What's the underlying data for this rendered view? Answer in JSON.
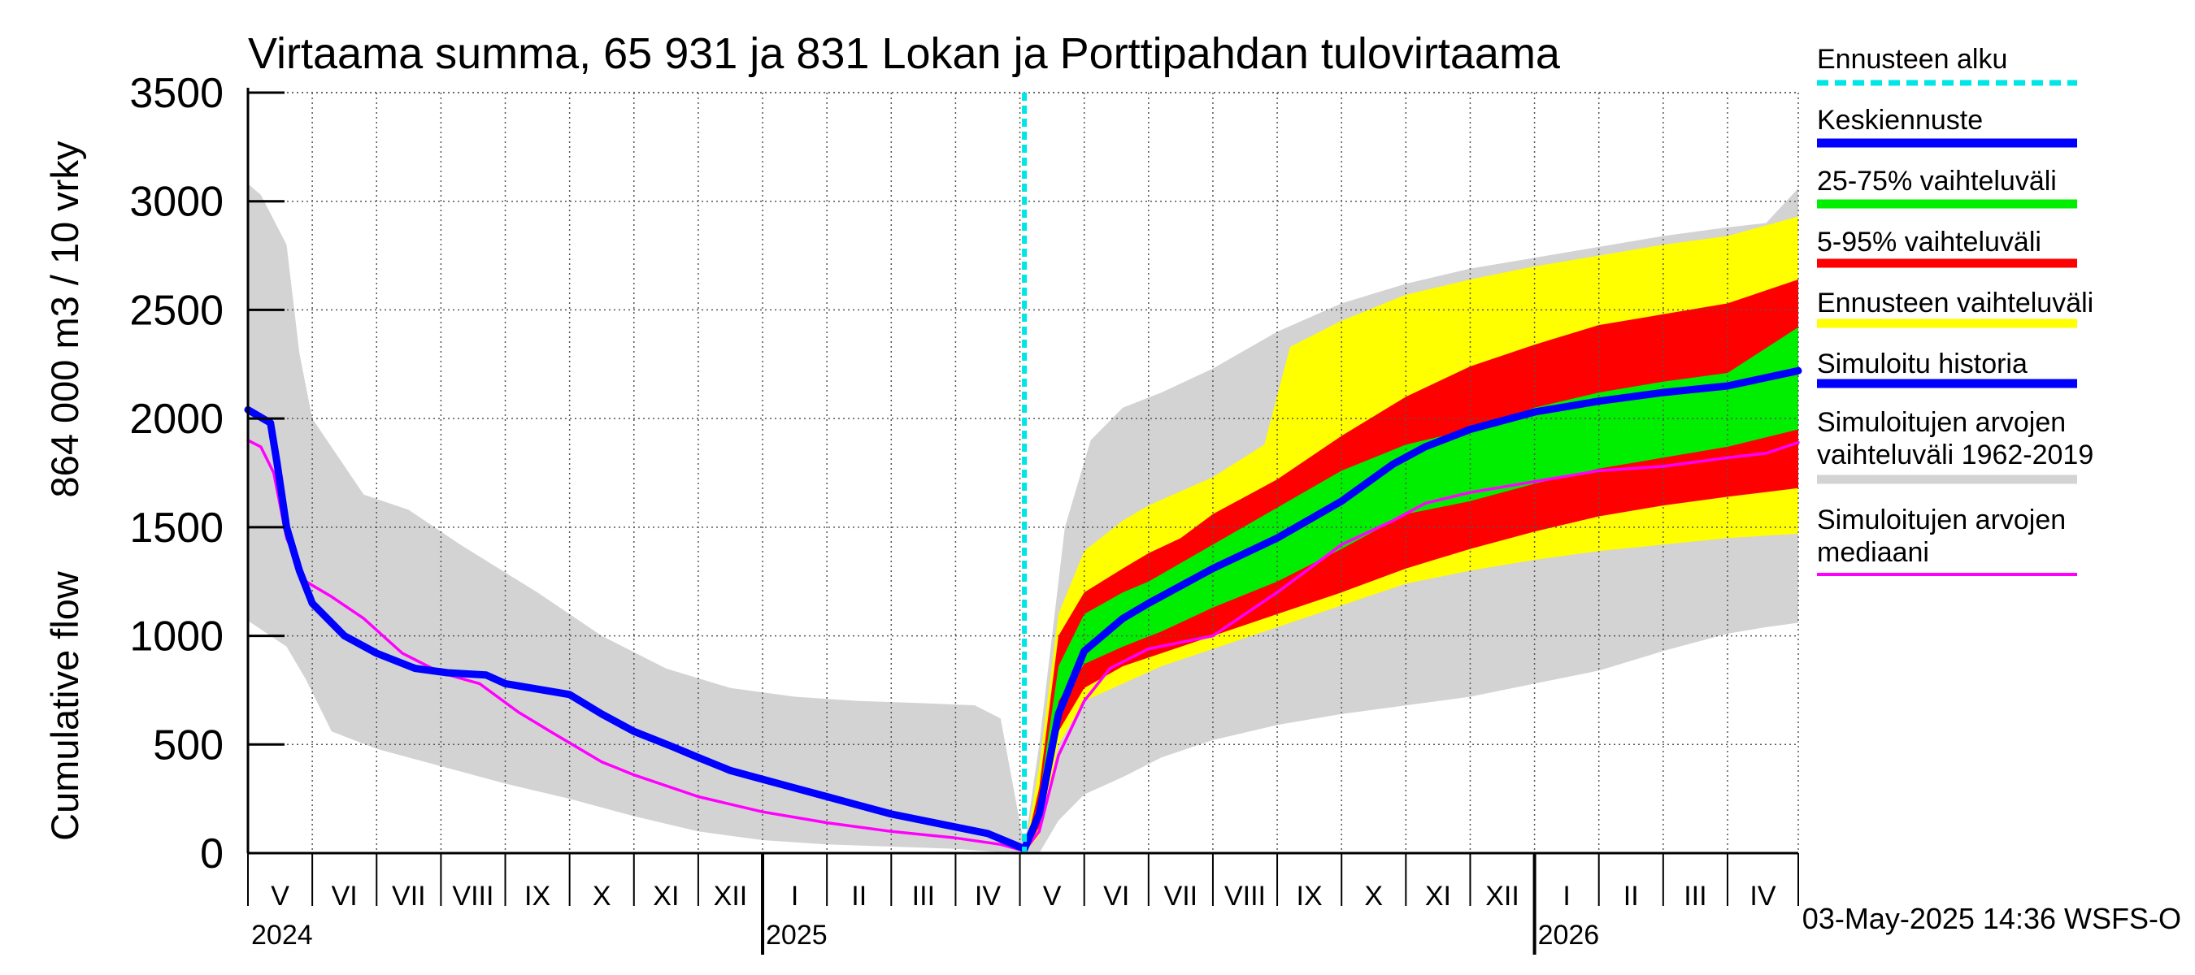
{
  "chart_data": {
    "type": "area",
    "title": "Virtaama summa, 65 931 ja 831 Lokan ja Porttipahdan tulovirtaama",
    "ylabel_top": "864 000 m3 / 10 vrky",
    "ylabel_bottom": "Cumulative flow",
    "ylim": [
      0,
      3500
    ],
    "yticks": [
      0,
      500,
      1000,
      1500,
      2000,
      2500,
      3000,
      3500
    ],
    "x_unit": "months since 2024-04-01",
    "xlim": [
      0,
      24.1
    ],
    "forecast_start": 12.07,
    "months": [
      {
        "label": "V",
        "start": 0
      },
      {
        "label": "VI",
        "start": 1
      },
      {
        "label": "VII",
        "start": 2
      },
      {
        "label": "VIII",
        "start": 3
      },
      {
        "label": "IX",
        "start": 4
      },
      {
        "label": "X",
        "start": 5
      },
      {
        "label": "XI",
        "start": 6
      },
      {
        "label": "XII",
        "start": 7
      },
      {
        "label": "I",
        "start": 8
      },
      {
        "label": "II",
        "start": 9
      },
      {
        "label": "III",
        "start": 10
      },
      {
        "label": "IV",
        "start": 11
      },
      {
        "label": "V",
        "start": 12
      },
      {
        "label": "VI",
        "start": 13
      },
      {
        "label": "VII",
        "start": 14
      },
      {
        "label": "VIII",
        "start": 15
      },
      {
        "label": "IX",
        "start": 16
      },
      {
        "label": "X",
        "start": 17
      },
      {
        "label": "XI",
        "start": 18
      },
      {
        "label": "XII",
        "start": 19
      },
      {
        "label": "I",
        "start": 20
      },
      {
        "label": "II",
        "start": 21
      },
      {
        "label": "III",
        "start": 22
      },
      {
        "label": "IV",
        "start": 23
      }
    ],
    "years": [
      {
        "label": "2024",
        "x": 0
      },
      {
        "label": "2025",
        "x": 8
      },
      {
        "label": "2026",
        "x": 20
      }
    ],
    "timestamp": "03-May-2025 14:36 WSFS-O",
    "legend": [
      {
        "key": "forecast_start",
        "label": "Ennusteen alku",
        "color": "#00e5e5",
        "dashed": true
      },
      {
        "key": "mean",
        "label": "Keskiennuste",
        "color": "#0000ff"
      },
      {
        "key": "p25_75",
        "label": "25-75% vaihteluväli",
        "color": "#00ee00"
      },
      {
        "key": "p5_95",
        "label": "5-95% vaihteluväli",
        "color": "#ff0000"
      },
      {
        "key": "forecast_range",
        "label": "Ennusteen vaihteluväli",
        "color": "#ffff00"
      },
      {
        "key": "sim_history",
        "label": "Simuloitu historia",
        "color": "#0000ff"
      },
      {
        "key": "sim_range",
        "label": "Simuloitujen arvojen vaihteluväli 1962-2019",
        "label_lines": [
          "Simuloitujen arvojen",
          "vaihteluväli 1962-2019"
        ],
        "color": "#d3d3d3"
      },
      {
        "key": "median",
        "label": "Simuloitujen arvojen mediaani",
        "label_lines": [
          "Simuloitujen arvojen",
          "mediaani"
        ],
        "color": "#ff00ff"
      }
    ],
    "series": {
      "sim_range_upper": [
        [
          0,
          3080
        ],
        [
          0.2,
          3030
        ],
        [
          0.6,
          2800
        ],
        [
          0.8,
          2300
        ],
        [
          1,
          2000
        ],
        [
          1.8,
          1650
        ],
        [
          2.5,
          1580
        ],
        [
          3.3,
          1420
        ],
        [
          4.5,
          1200
        ],
        [
          5.5,
          1000
        ],
        [
          6.5,
          850
        ],
        [
          7.5,
          760
        ],
        [
          8.5,
          720
        ],
        [
          9.5,
          700
        ],
        [
          10.5,
          690
        ],
        [
          11.3,
          680
        ],
        [
          11.7,
          620
        ],
        [
          12.07,
          30
        ],
        [
          12.3,
          500
        ],
        [
          12.7,
          1500
        ],
        [
          13.1,
          1900
        ],
        [
          13.6,
          2050
        ],
        [
          14.2,
          2120
        ],
        [
          15,
          2230
        ],
        [
          16,
          2400
        ],
        [
          17,
          2530
        ],
        [
          18,
          2620
        ],
        [
          19,
          2690
        ],
        [
          20,
          2740
        ],
        [
          21,
          2790
        ],
        [
          22,
          2840
        ],
        [
          23,
          2880
        ],
        [
          23.6,
          2900
        ],
        [
          24.1,
          3060
        ]
      ],
      "sim_range_lower": [
        [
          0,
          1070
        ],
        [
          0.6,
          950
        ],
        [
          0.9,
          800
        ],
        [
          1.3,
          560
        ],
        [
          2,
          480
        ],
        [
          3,
          400
        ],
        [
          4,
          320
        ],
        [
          5,
          250
        ],
        [
          6,
          170
        ],
        [
          7,
          100
        ],
        [
          8,
          60
        ],
        [
          9,
          40
        ],
        [
          10,
          30
        ],
        [
          11,
          20
        ],
        [
          11.9,
          0
        ],
        [
          12.3,
          0
        ],
        [
          12.6,
          150
        ],
        [
          13,
          270
        ],
        [
          13.6,
          350
        ],
        [
          14.2,
          440
        ],
        [
          15,
          520
        ],
        [
          16,
          590
        ],
        [
          17,
          640
        ],
        [
          18,
          680
        ],
        [
          19,
          720
        ],
        [
          20,
          780
        ],
        [
          21,
          840
        ],
        [
          22,
          930
        ],
        [
          23,
          1010
        ],
        [
          23.6,
          1040
        ],
        [
          24.1,
          1060
        ]
      ],
      "forecast_range_upper": [
        [
          12.07,
          0
        ],
        [
          12.3,
          400
        ],
        [
          12.6,
          1100
        ],
        [
          13,
          1390
        ],
        [
          13.6,
          1530
        ],
        [
          14,
          1600
        ],
        [
          15,
          1730
        ],
        [
          15.8,
          1880
        ],
        [
          16.2,
          2330
        ],
        [
          17,
          2450
        ],
        [
          18,
          2570
        ],
        [
          19,
          2640
        ],
        [
          20,
          2700
        ],
        [
          21,
          2750
        ],
        [
          22,
          2800
        ],
        [
          23,
          2840
        ],
        [
          24.1,
          2930
        ]
      ],
      "forecast_range_lower": [
        [
          12.07,
          0
        ],
        [
          12.3,
          80
        ],
        [
          12.6,
          500
        ],
        [
          13,
          700
        ],
        [
          13.6,
          780
        ],
        [
          14.2,
          860
        ],
        [
          15,
          940
        ],
        [
          16,
          1040
        ],
        [
          17,
          1140
        ],
        [
          18,
          1240
        ],
        [
          19,
          1300
        ],
        [
          20,
          1350
        ],
        [
          21,
          1390
        ],
        [
          22,
          1420
        ],
        [
          23,
          1450
        ],
        [
          24.1,
          1470
        ]
      ],
      "p5_95_upper": [
        [
          12.07,
          0
        ],
        [
          12.3,
          300
        ],
        [
          12.6,
          1000
        ],
        [
          13,
          1200
        ],
        [
          13.6,
          1310
        ],
        [
          14,
          1380
        ],
        [
          14.5,
          1450
        ],
        [
          15,
          1560
        ],
        [
          16,
          1720
        ],
        [
          17,
          1920
        ],
        [
          18,
          2100
        ],
        [
          19,
          2240
        ],
        [
          20,
          2340
        ],
        [
          21,
          2430
        ],
        [
          22,
          2480
        ],
        [
          23,
          2530
        ],
        [
          24.1,
          2640
        ]
      ],
      "p5_95_lower": [
        [
          12.07,
          0
        ],
        [
          12.3,
          120
        ],
        [
          12.6,
          560
        ],
        [
          13,
          760
        ],
        [
          13.6,
          860
        ],
        [
          14.2,
          920
        ],
        [
          15,
          1000
        ],
        [
          16,
          1100
        ],
        [
          17,
          1200
        ],
        [
          18,
          1310
        ],
        [
          19,
          1400
        ],
        [
          20,
          1480
        ],
        [
          21,
          1550
        ],
        [
          22,
          1600
        ],
        [
          23,
          1640
        ],
        [
          24.1,
          1680
        ]
      ],
      "p25_75_upper": [
        [
          12.07,
          0
        ],
        [
          12.3,
          250
        ],
        [
          12.6,
          860
        ],
        [
          13,
          1100
        ],
        [
          13.6,
          1200
        ],
        [
          14,
          1250
        ],
        [
          15,
          1420
        ],
        [
          16,
          1590
        ],
        [
          17,
          1760
        ],
        [
          18,
          1880
        ],
        [
          19,
          1950
        ],
        [
          20,
          2050
        ],
        [
          21,
          2120
        ],
        [
          22,
          2170
        ],
        [
          23,
          2210
        ],
        [
          24.1,
          2420
        ]
      ],
      "p25_75_lower": [
        [
          12.07,
          0
        ],
        [
          12.3,
          150
        ],
        [
          12.6,
          700
        ],
        [
          13,
          870
        ],
        [
          13.6,
          950
        ],
        [
          14.2,
          1020
        ],
        [
          15,
          1130
        ],
        [
          16,
          1250
        ],
        [
          17,
          1400
        ],
        [
          18,
          1560
        ],
        [
          19,
          1620
        ],
        [
          20,
          1700
        ],
        [
          21,
          1770
        ],
        [
          22,
          1820
        ],
        [
          23,
          1870
        ],
        [
          24.1,
          1950
        ]
      ],
      "sim_history": [
        [
          0,
          2040
        ],
        [
          0.35,
          1980
        ],
        [
          0.45,
          1800
        ],
        [
          0.6,
          1500
        ],
        [
          0.8,
          1300
        ],
        [
          1,
          1150
        ],
        [
          1.5,
          1000
        ],
        [
          2,
          920
        ],
        [
          2.6,
          850
        ],
        [
          3.1,
          830
        ],
        [
          3.7,
          820
        ],
        [
          4,
          780
        ],
        [
          4.6,
          750
        ],
        [
          5,
          730
        ],
        [
          5.5,
          640
        ],
        [
          6,
          560
        ],
        [
          6.6,
          490
        ],
        [
          7,
          440
        ],
        [
          7.5,
          380
        ],
        [
          8,
          340
        ],
        [
          8.5,
          300
        ],
        [
          9,
          260
        ],
        [
          9.5,
          220
        ],
        [
          10,
          180
        ],
        [
          10.5,
          150
        ],
        [
          11,
          120
        ],
        [
          11.5,
          90
        ],
        [
          12.07,
          20
        ]
      ],
      "mean": [
        [
          12.07,
          20
        ],
        [
          12.3,
          180
        ],
        [
          12.6,
          640
        ],
        [
          13,
          930
        ],
        [
          13.6,
          1080
        ],
        [
          14,
          1150
        ],
        [
          15,
          1310
        ],
        [
          16,
          1450
        ],
        [
          17,
          1620
        ],
        [
          17.8,
          1790
        ],
        [
          18.3,
          1870
        ],
        [
          19,
          1950
        ],
        [
          20,
          2030
        ],
        [
          21,
          2080
        ],
        [
          22,
          2120
        ],
        [
          23,
          2150
        ],
        [
          24.1,
          2220
        ]
      ],
      "median": [
        [
          0,
          1900
        ],
        [
          0.2,
          1870
        ],
        [
          0.4,
          1750
        ],
        [
          0.6,
          1450
        ],
        [
          0.9,
          1250
        ],
        [
          1.3,
          1180
        ],
        [
          1.8,
          1080
        ],
        [
          2.4,
          920
        ],
        [
          3,
          830
        ],
        [
          3.6,
          780
        ],
        [
          4.2,
          650
        ],
        [
          4.7,
          560
        ],
        [
          5.5,
          420
        ],
        [
          6,
          360
        ],
        [
          7,
          260
        ],
        [
          8,
          190
        ],
        [
          9,
          140
        ],
        [
          10,
          100
        ],
        [
          11,
          70
        ],
        [
          11.7,
          40
        ],
        [
          12.07,
          10
        ],
        [
          12.3,
          100
        ],
        [
          12.6,
          450
        ],
        [
          13,
          700
        ],
        [
          13.4,
          850
        ],
        [
          14,
          940
        ],
        [
          15,
          1000
        ],
        [
          16,
          1200
        ],
        [
          17,
          1420
        ],
        [
          17.8,
          1530
        ],
        [
          18.3,
          1610
        ],
        [
          19,
          1660
        ],
        [
          20,
          1710
        ],
        [
          21,
          1760
        ],
        [
          22,
          1780
        ],
        [
          23,
          1820
        ],
        [
          23.6,
          1840
        ],
        [
          24.1,
          1890
        ]
      ]
    }
  }
}
